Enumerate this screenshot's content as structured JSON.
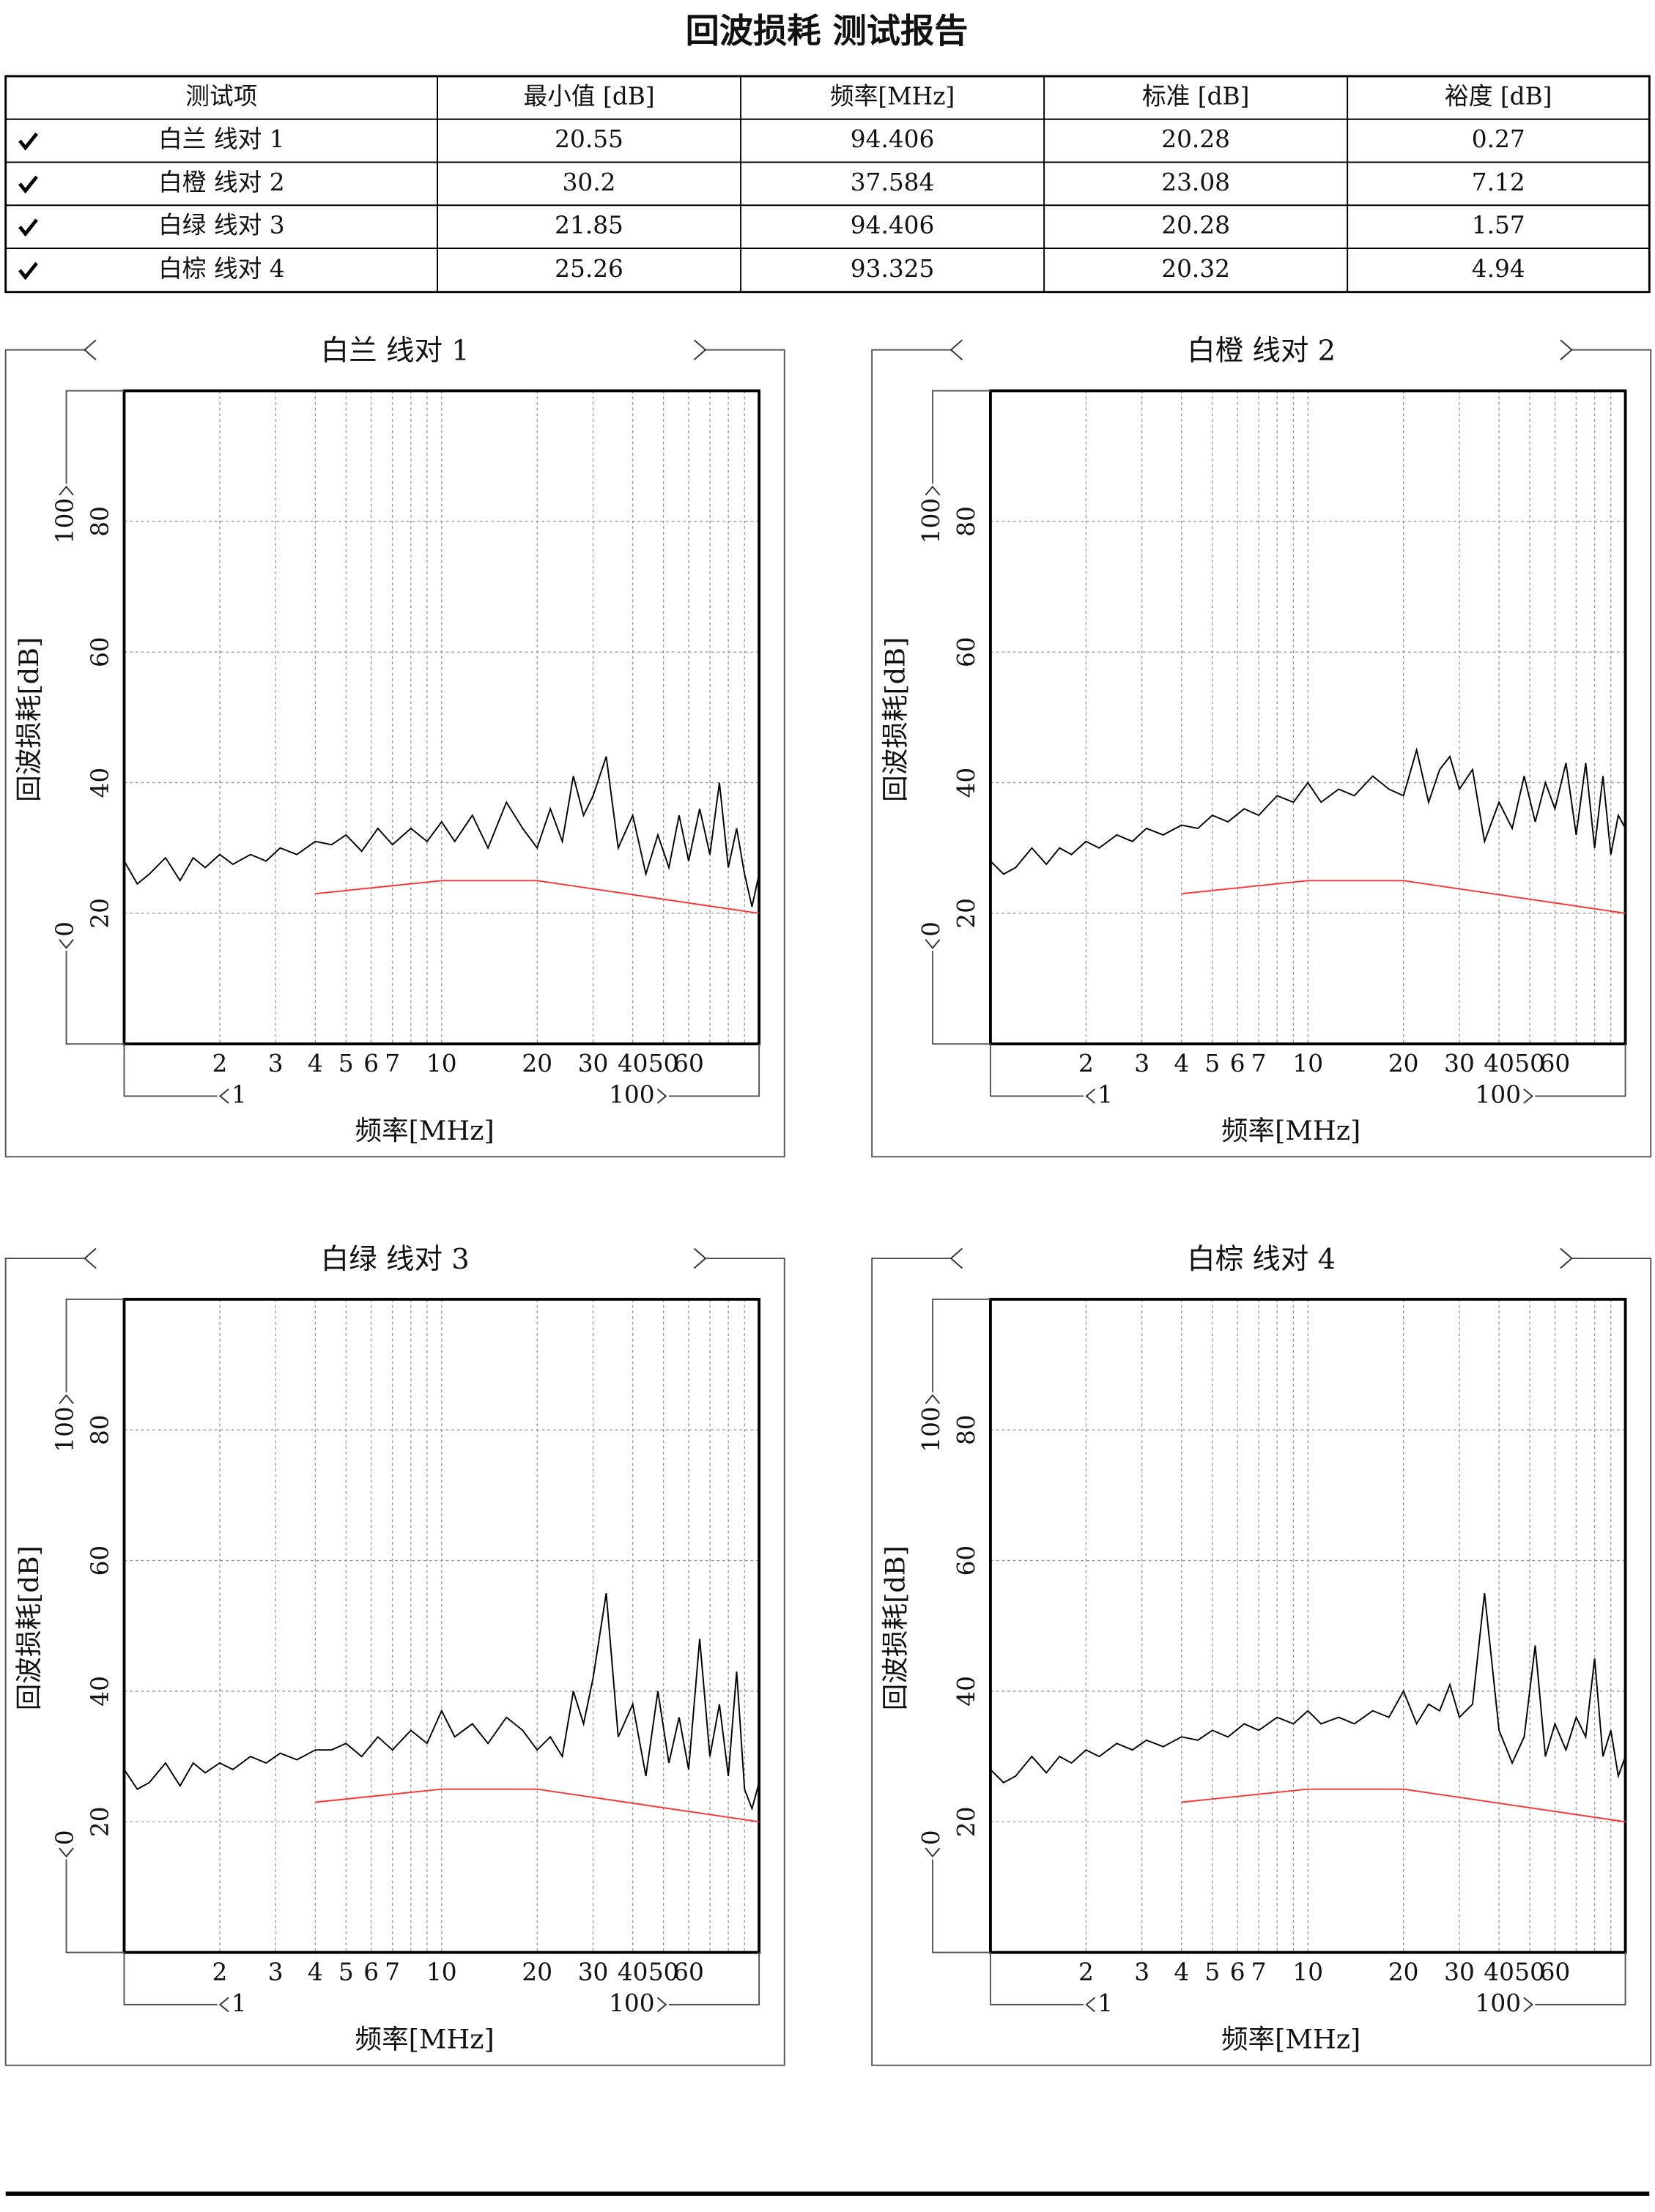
{
  "header": {
    "title": "回波损耗 测试报告"
  },
  "table": {
    "columns": [
      "测试项",
      "最小值 [dB]",
      "频率[MHz]",
      "标准 [dB]",
      "裕度 [dB]"
    ],
    "rows": [
      [
        "白兰 线对 1",
        "20.55",
        "94.406",
        "20.28",
        "0.27"
      ],
      [
        "白橙 线对 2",
        "30.2",
        "37.584",
        "23.08",
        "7.12"
      ],
      [
        "白绿 线对 3",
        "21.85",
        "94.406",
        "20.28",
        "1.57"
      ],
      [
        "白棕 线对 4",
        "25.26",
        "93.325",
        "20.32",
        "4.94"
      ]
    ]
  },
  "chart_data": [
    {
      "type": "line",
      "title": "白兰 线对 1",
      "xlabel": "频率[MHz]",
      "ylabel": "回波损耗[dB]",
      "xlog": true,
      "grid": true,
      "xlim": [
        1,
        100
      ],
      "ylim": [
        0,
        100
      ],
      "xticks": [
        2,
        3,
        4,
        5,
        6,
        7,
        10,
        20,
        30,
        40,
        50,
        60
      ],
      "yticks": [
        20,
        40,
        60,
        80
      ],
      "series": [
        {
          "color": "#000000",
          "x": [
            1,
            1.1,
            1.2,
            1.35,
            1.5,
            1.65,
            1.8,
            2,
            2.2,
            2.5,
            2.8,
            3.1,
            3.5,
            4,
            4.5,
            5,
            5.6,
            6.3,
            7,
            8,
            9,
            10,
            11,
            12.5,
            14,
            16,
            18,
            20,
            22,
            24,
            26,
            28,
            30,
            33,
            36,
            40,
            44,
            48,
            52,
            56,
            60,
            65,
            70,
            75,
            80,
            85,
            90,
            95,
            100
          ],
          "values": [
            28,
            24.5,
            26,
            28.5,
            25,
            28.5,
            27,
            29,
            27.5,
            29,
            28,
            30,
            29,
            31,
            30.5,
            32,
            29.5,
            33,
            30.5,
            33,
            31,
            34,
            31,
            35,
            30,
            37,
            33,
            30,
            36,
            31,
            41,
            35,
            38,
            44,
            30,
            35,
            26,
            32,
            27,
            35,
            28,
            36,
            29,
            40,
            27,
            33,
            26,
            21,
            26
          ]
        },
        {
          "color": "#ff3333",
          "x": [
            4,
            10,
            20,
            100
          ],
          "values": [
            23,
            25,
            25,
            20
          ]
        }
      ]
    },
    {
      "type": "line",
      "title": "白橙 线对 2",
      "xlabel": "频率[MHz]",
      "ylabel": "回波损耗[dB]",
      "xlog": true,
      "grid": true,
      "xlim": [
        1,
        100
      ],
      "ylim": [
        0,
        100
      ],
      "xticks": [
        2,
        3,
        4,
        5,
        6,
        7,
        10,
        20,
        30,
        40,
        50,
        60
      ],
      "yticks": [
        20,
        40,
        60,
        80
      ],
      "series": [
        {
          "color": "#000000",
          "x": [
            1,
            1.1,
            1.2,
            1.35,
            1.5,
            1.65,
            1.8,
            2,
            2.2,
            2.5,
            2.8,
            3.1,
            3.5,
            4,
            4.5,
            5,
            5.6,
            6.3,
            7,
            8,
            9,
            10,
            11,
            12.5,
            14,
            16,
            18,
            20,
            22,
            24,
            26,
            28,
            30,
            33,
            36,
            40,
            44,
            48,
            52,
            56,
            60,
            65,
            70,
            75,
            80,
            85,
            90,
            95,
            100
          ],
          "values": [
            28,
            26,
            27,
            30,
            27.5,
            30,
            29,
            31,
            30,
            32,
            31,
            33,
            32,
            33.5,
            33,
            35,
            34,
            36,
            35,
            38,
            37,
            40,
            37,
            39,
            38,
            41,
            39,
            38,
            45,
            37,
            42,
            44,
            39,
            42,
            31,
            37,
            33,
            41,
            34,
            40,
            36,
            43,
            32,
            43,
            30,
            41,
            29,
            35,
            33
          ]
        },
        {
          "color": "#ff3333",
          "x": [
            4,
            10,
            20,
            100
          ],
          "values": [
            23,
            25,
            25,
            20
          ]
        }
      ]
    },
    {
      "type": "line",
      "title": "白绿 线对 3",
      "xlabel": "频率[MHz]",
      "ylabel": "回波损耗[dB]",
      "xlog": true,
      "grid": true,
      "xlim": [
        1,
        100
      ],
      "ylim": [
        0,
        100
      ],
      "xticks": [
        2,
        3,
        4,
        5,
        6,
        7,
        10,
        20,
        30,
        40,
        50,
        60
      ],
      "yticks": [
        20,
        40,
        60,
        80
      ],
      "series": [
        {
          "color": "#000000",
          "x": [
            1,
            1.1,
            1.2,
            1.35,
            1.5,
            1.65,
            1.8,
            2,
            2.2,
            2.5,
            2.8,
            3.1,
            3.5,
            4,
            4.5,
            5,
            5.6,
            6.3,
            7,
            8,
            9,
            10,
            11,
            12.5,
            14,
            16,
            18,
            20,
            22,
            24,
            26,
            28,
            30,
            33,
            36,
            40,
            44,
            48,
            52,
            56,
            60,
            65,
            70,
            75,
            80,
            85,
            90,
            95,
            100
          ],
          "values": [
            28,
            25,
            26,
            29,
            25.5,
            29,
            27.5,
            29,
            28,
            30,
            29,
            30.5,
            29.5,
            31,
            31,
            32,
            30,
            33,
            31,
            34,
            32,
            37,
            33,
            35,
            32,
            36,
            34,
            31,
            33,
            30,
            40,
            35,
            42,
            55,
            33,
            38,
            27,
            40,
            29,
            36,
            28,
            48,
            30,
            38,
            27,
            43,
            25,
            22,
            26
          ]
        },
        {
          "color": "#ff3333",
          "x": [
            4,
            10,
            20,
            100
          ],
          "values": [
            23,
            25,
            25,
            20
          ]
        }
      ]
    },
    {
      "type": "line",
      "title": "白棕 线对 4",
      "xlabel": "频率[MHz]",
      "ylabel": "回波损耗[dB]",
      "xlog": true,
      "grid": true,
      "xlim": [
        1,
        100
      ],
      "ylim": [
        0,
        100
      ],
      "xticks": [
        2,
        3,
        4,
        5,
        6,
        7,
        10,
        20,
        30,
        40,
        50,
        60
      ],
      "yticks": [
        20,
        40,
        60,
        80
      ],
      "series": [
        {
          "color": "#000000",
          "x": [
            1,
            1.1,
            1.2,
            1.35,
            1.5,
            1.65,
            1.8,
            2,
            2.2,
            2.5,
            2.8,
            3.1,
            3.5,
            4,
            4.5,
            5,
            5.6,
            6.3,
            7,
            8,
            9,
            10,
            11,
            12.5,
            14,
            16,
            18,
            20,
            22,
            24,
            26,
            28,
            30,
            33,
            36,
            40,
            44,
            48,
            52,
            56,
            60,
            65,
            70,
            75,
            80,
            85,
            90,
            95,
            100
          ],
          "values": [
            28,
            26,
            27,
            30,
            27.5,
            30,
            29,
            31,
            30,
            32,
            31,
            32.5,
            31.5,
            33,
            32.5,
            34,
            33,
            35,
            34,
            36,
            35,
            37,
            35,
            36,
            35,
            37,
            36,
            40,
            35,
            38,
            37,
            41,
            36,
            38,
            55,
            34,
            29,
            33,
            47,
            30,
            35,
            31,
            36,
            33,
            45,
            30,
            34,
            27,
            30
          ]
        },
        {
          "color": "#ff3333",
          "x": [
            4,
            10,
            20,
            100
          ],
          "values": [
            23,
            25,
            25,
            20
          ]
        }
      ]
    }
  ]
}
